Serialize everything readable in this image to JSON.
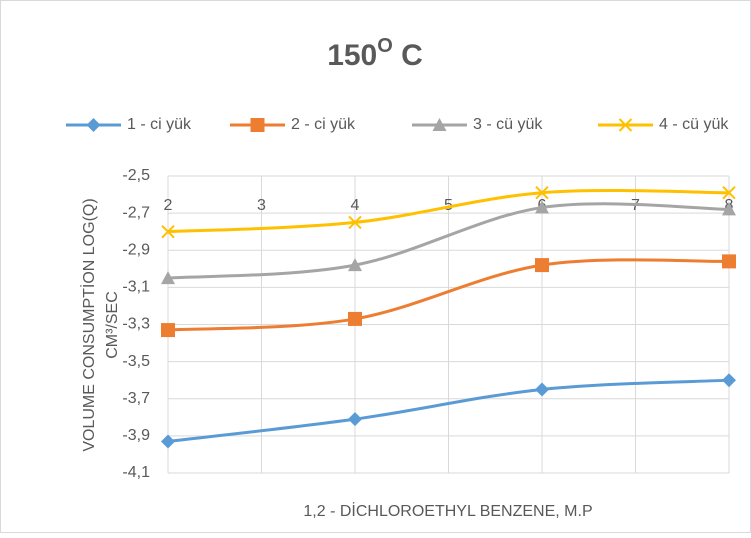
{
  "chart_data": {
    "type": "line",
    "title": "150",
    "title_superscript": "O",
    "title_suffix": " C",
    "ylabel": [
      "VOLUME CONSUMPTİON LOG(Q)",
      "CM³/SEC"
    ],
    "xlabel": "1,2 - DİCHLOROETHYL BENZENE, M.P",
    "x": [
      2,
      4,
      6,
      8
    ],
    "xlim": [
      2,
      8
    ],
    "xticks": [
      2,
      3,
      4,
      5,
      6,
      7,
      8
    ],
    "ylim": [
      -4.1,
      -2.5
    ],
    "yticks": [
      {
        "value": -2.5,
        "label": "-2,5"
      },
      {
        "value": -2.7,
        "label": "-2,7"
      },
      {
        "value": -2.9,
        "label": "-2,9"
      },
      {
        "value": -3.1,
        "label": "-3,1"
      },
      {
        "value": -3.3,
        "label": "-3,3"
      },
      {
        "value": -3.5,
        "label": "-3,5"
      },
      {
        "value": -3.7,
        "label": "-3,7"
      },
      {
        "value": -3.9,
        "label": "-3,9"
      },
      {
        "value": -4.1,
        "label": "-4,1"
      }
    ],
    "grid": true,
    "smooth": true,
    "legend": "top",
    "series": [
      {
        "name": "1 - ci yük",
        "color": "#5b9bd5",
        "marker": "diamond",
        "values": [
          -3.93,
          -3.81,
          -3.65,
          -3.6
        ]
      },
      {
        "name": "2 - ci yük",
        "color": "#ed7d31",
        "marker": "square",
        "values": [
          -3.33,
          -3.27,
          -2.98,
          -2.96
        ]
      },
      {
        "name": "3 - cü yük",
        "color": "#a5a5a5",
        "marker": "triangle",
        "values": [
          -3.05,
          -2.98,
          -2.67,
          -2.68
        ]
      },
      {
        "name": "4 - cü yük",
        "color": "#ffc000",
        "marker": "x",
        "values": [
          -2.8,
          -2.75,
          -2.59,
          -2.59
        ]
      }
    ]
  }
}
